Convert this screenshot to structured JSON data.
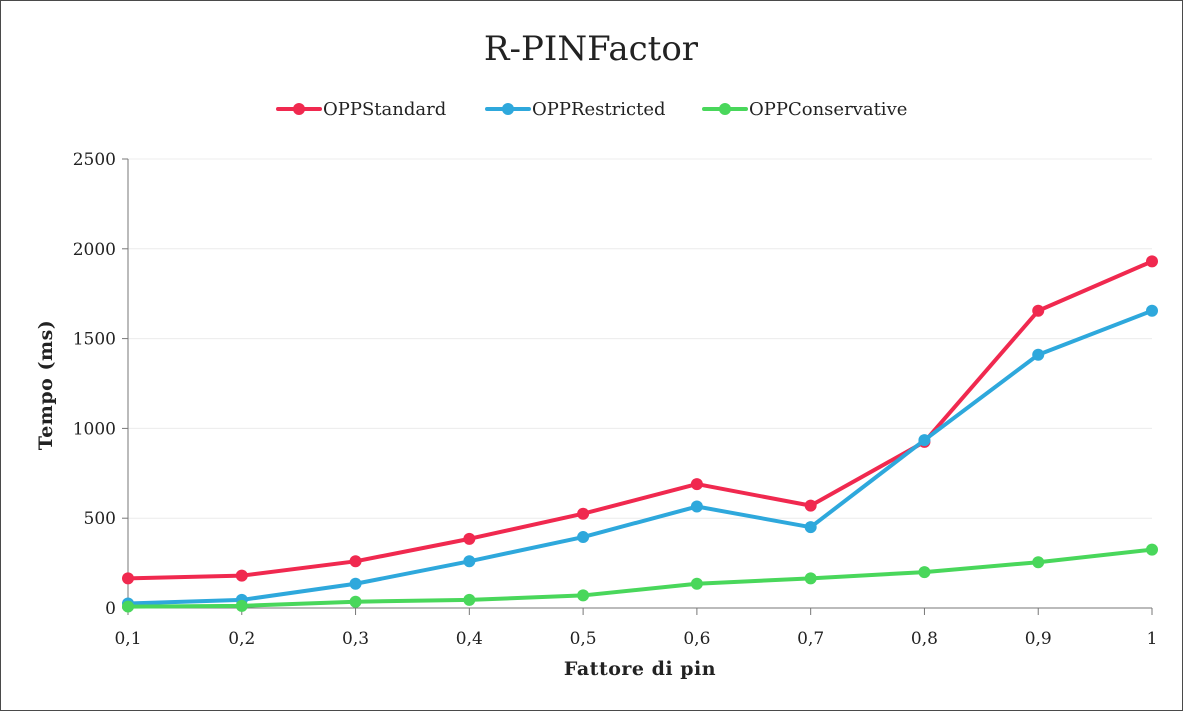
{
  "chart_data": {
    "type": "line",
    "title": "R-PINFactor",
    "xlabel": "Fattore di pin",
    "ylabel": "Tempo (ms)",
    "categories": [
      "0,1",
      "0,2",
      "0,3",
      "0,4",
      "0,5",
      "0,6",
      "0,7",
      "0,8",
      "0,9",
      "1"
    ],
    "ylim": [
      0,
      2500
    ],
    "yticks": [
      "0",
      "500",
      "1000",
      "1500",
      "2000",
      "2500"
    ],
    "grid": true,
    "legend_position": "top",
    "series": [
      {
        "name": "OPPStandard",
        "color": "#f0294f",
        "values": [
          165,
          180,
          260,
          385,
          525,
          690,
          570,
          925,
          1655,
          1930
        ]
      },
      {
        "name": "OPPRestricted",
        "color": "#2ea8dc",
        "values": [
          25,
          45,
          135,
          260,
          395,
          565,
          450,
          935,
          1410,
          1655
        ]
      },
      {
        "name": "OPPConservative",
        "color": "#49d75b",
        "values": [
          8,
          12,
          35,
          45,
          70,
          135,
          165,
          200,
          255,
          325
        ]
      }
    ]
  }
}
